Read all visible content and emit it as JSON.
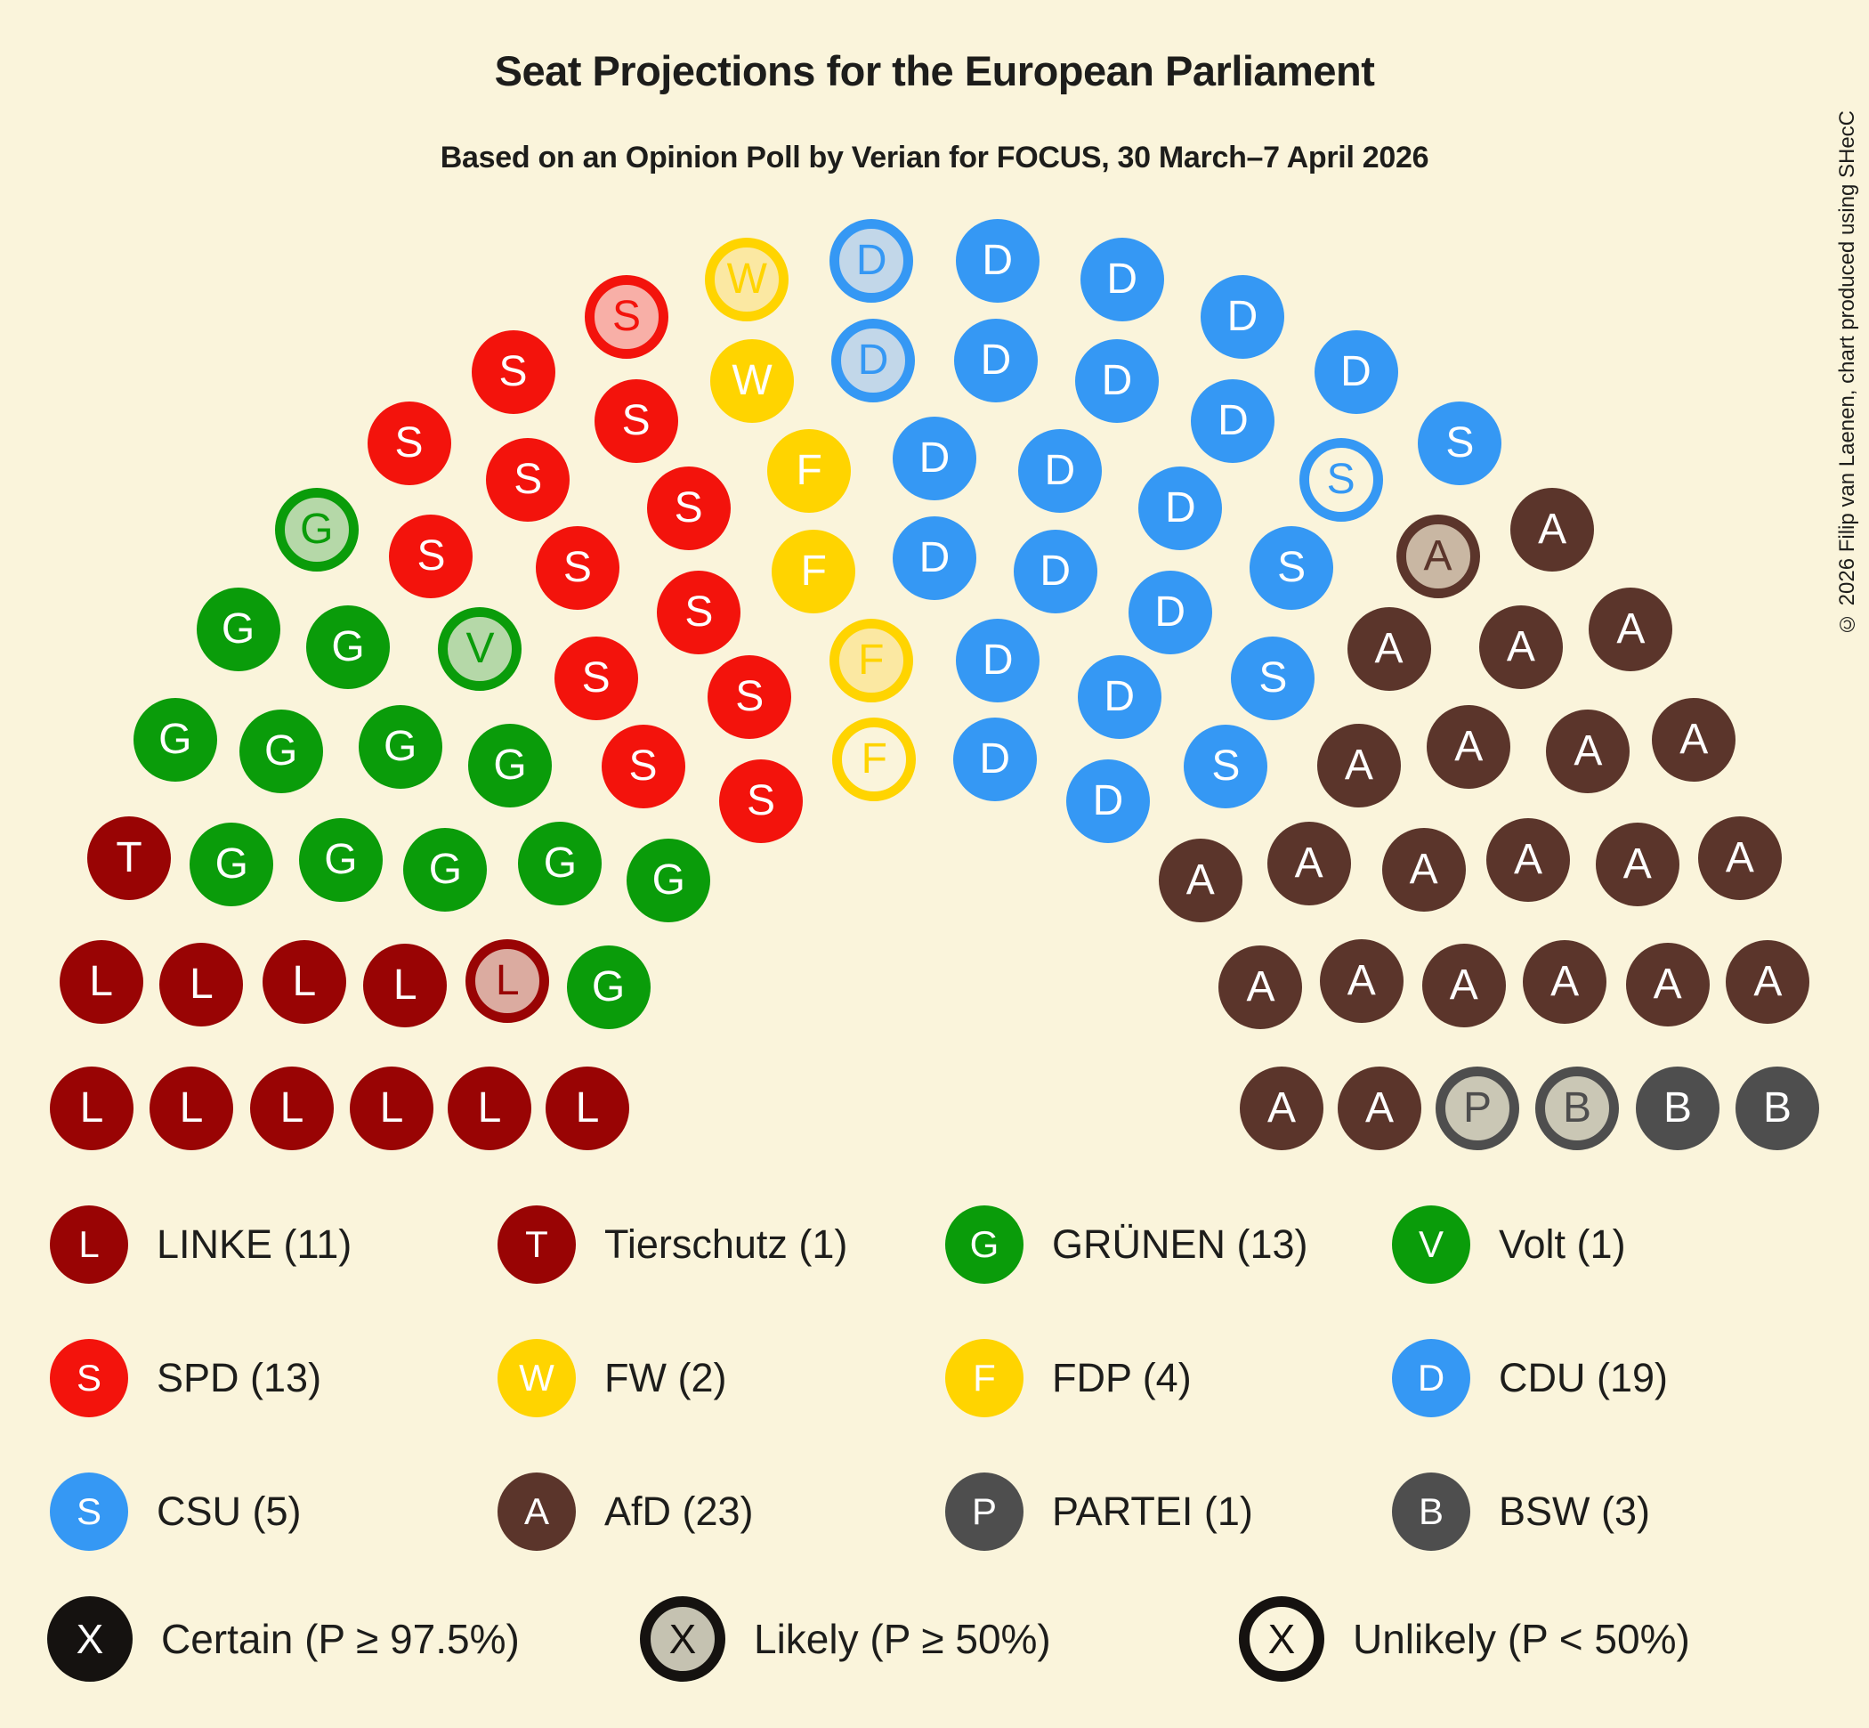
{
  "title": "Seat Projections for the European Parliament",
  "subtitle": "Based on an Opinion Poll by Verian for FOCUS, 30 March–7 April 2026",
  "copyright": "© 2026 Filip van Laenen, chart produced using SHecC",
  "colors": {
    "background": "#FAF4DB",
    "text": "#1D1D1B",
    "status_black": "#151210",
    "status_likely_fill": "#C5C2B1"
  },
  "chart_data": {
    "type": "parliament-hemicycle",
    "title": "Seat Projections for the European Parliament",
    "total_seats": 96,
    "parties": [
      {
        "id": "linke",
        "letter": "L",
        "name": "LINKE",
        "seats": 11,
        "color": "#990404",
        "likely_fill": "#DBABA0"
      },
      {
        "id": "tierschutz",
        "letter": "T",
        "name": "Tierschutz",
        "seats": 1,
        "color": "#990404",
        "likely_fill": "#DBABA0"
      },
      {
        "id": "gruenen",
        "letter": "G",
        "name": "GRÜNEN",
        "seats": 13,
        "color": "#0A9C0A",
        "likely_fill": "#B5D8A8"
      },
      {
        "id": "volt",
        "letter": "V",
        "name": "Volt",
        "seats": 1,
        "color": "#0A9C0A",
        "likely_fill": "#B5D8A8"
      },
      {
        "id": "spd",
        "letter": "S",
        "name": "SPD",
        "seats": 13,
        "color": "#F3130C",
        "likely_fill": "#F8AFA7"
      },
      {
        "id": "fw",
        "letter": "W",
        "name": "FW",
        "seats": 2,
        "color": "#FFD400",
        "likely_fill": "#FBE8A2"
      },
      {
        "id": "fdp",
        "letter": "F",
        "name": "FDP",
        "seats": 4,
        "color": "#FFD400",
        "likely_fill": "#FBE8A2"
      },
      {
        "id": "cdu",
        "letter": "D",
        "name": "CDU",
        "seats": 19,
        "color": "#3598F4",
        "likely_fill": "#C2D7E9"
      },
      {
        "id": "csu",
        "letter": "S",
        "name": "CSU",
        "seats": 5,
        "color": "#3598F4",
        "likely_fill": "#C2D7E9"
      },
      {
        "id": "afd",
        "letter": "A",
        "name": "AfD",
        "seats": 23,
        "color": "#5B352B",
        "likely_fill": "#C9B7A3"
      },
      {
        "id": "partei",
        "letter": "P",
        "name": "PARTEI",
        "seats": 1,
        "color": "#4E4E4E",
        "likely_fill": "#CAC7B5"
      },
      {
        "id": "bsw",
        "letter": "B",
        "name": "BSW",
        "seats": 3,
        "color": "#4E4E4E",
        "likely_fill": "#CAC7B5"
      }
    ],
    "status_key": {
      "+": "likely",
      "-": "unlikely",
      "default": "certain"
    },
    "rows_inner_to_outer": [
      [
        "linke",
        "gruenen",
        "gruenen",
        "spd",
        "fdp-",
        "cdu",
        "cdu",
        "afd",
        "afd",
        "afd"
      ],
      [
        "linke",
        "linke+",
        "gruenen",
        "spd",
        "spd",
        "fdp+",
        "cdu",
        "cdu",
        "csu",
        "afd",
        "afd",
        "afd"
      ],
      [
        "linke",
        "linke",
        "gruenen",
        "gruenen",
        "spd",
        "spd",
        "fdp",
        "cdu",
        "cdu",
        "cdu",
        "csu",
        "afd",
        "afd",
        "afd",
        "partei+"
      ],
      [
        "linke",
        "linke",
        "gruenen",
        "gruenen",
        "volt+",
        "spd",
        "spd",
        "fdp",
        "cdu",
        "cdu",
        "cdu",
        "csu",
        "afd",
        "afd",
        "afd",
        "afd",
        "bsw+"
      ],
      [
        "linke",
        "linke",
        "gruenen",
        "gruenen",
        "gruenen",
        "spd",
        "spd",
        "spd",
        "fw",
        "cdu+",
        "cdu",
        "cdu",
        "cdu",
        "csu-",
        "afd+",
        "afd",
        "afd",
        "afd",
        "afd",
        "bsw"
      ],
      [
        "linke",
        "linke",
        "tierschutz",
        "gruenen",
        "gruenen",
        "gruenen+",
        "spd",
        "spd",
        "spd+",
        "fw+",
        "cdu+",
        "cdu",
        "cdu",
        "cdu",
        "cdu",
        "csu",
        "afd",
        "afd",
        "afd",
        "afd",
        "afd",
        "bsw"
      ]
    ]
  },
  "legend": {
    "rows": [
      [
        {
          "party": "linke",
          "label": "LINKE (11)"
        },
        {
          "party": "tierschutz",
          "label": "Tierschutz (1)"
        },
        {
          "party": "gruenen",
          "label": "GRÜNEN (13)"
        },
        {
          "party": "volt",
          "label": "Volt (1)"
        }
      ],
      [
        {
          "party": "spd",
          "label": "SPD (13)"
        },
        {
          "party": "fw",
          "label": "FW (2)"
        },
        {
          "party": "fdp",
          "label": "FDP (4)"
        },
        {
          "party": "cdu",
          "label": "CDU (19)"
        }
      ],
      [
        {
          "party": "csu",
          "label": "CSU (5)"
        },
        {
          "party": "afd",
          "label": "AfD (23)"
        },
        {
          "party": "partei",
          "label": "PARTEI (1)"
        },
        {
          "party": "bsw",
          "label": "BSW (3)"
        }
      ]
    ],
    "status_row": [
      {
        "style": "certain",
        "letter": "X",
        "label": "Certain (P ≥ 97.5%)"
      },
      {
        "style": "likely",
        "letter": "X",
        "label": "Likely (P ≥ 50%)"
      },
      {
        "style": "unlikely",
        "letter": "X",
        "label": "Unlikely (P < 50%)"
      }
    ]
  }
}
